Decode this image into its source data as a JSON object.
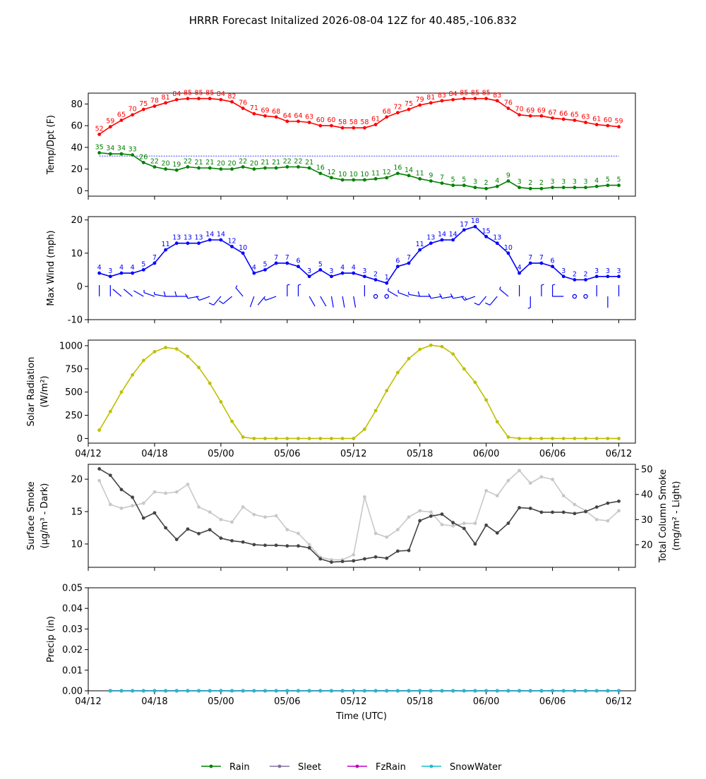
{
  "title": "HRRR Forecast Initalized 2026-08-04 12Z for 40.485,-106.832",
  "xlabel": "Time (UTC)",
  "x_start_hour": 13,
  "x_ticks": [
    {
      "label": "04/12",
      "hour": 12
    },
    {
      "label": "04/18",
      "hour": 18
    },
    {
      "label": "05/00",
      "hour": 24
    },
    {
      "label": "05/06",
      "hour": 30
    },
    {
      "label": "05/12",
      "hour": 36
    },
    {
      "label": "05/18",
      "hour": 42
    },
    {
      "label": "06/00",
      "hour": 48
    },
    {
      "label": "06/06",
      "hour": 54
    },
    {
      "label": "06/12",
      "hour": 60
    }
  ],
  "legend": [
    {
      "name": "Rain",
      "color": "#008000"
    },
    {
      "name": "Sleet",
      "color": "#8070a0"
    },
    {
      "name": "FzRain",
      "color": "#c000c0"
    },
    {
      "name": "SnowWater",
      "color": "#17becf"
    }
  ],
  "chart_data": [
    {
      "type": "line",
      "ylabel": "Temp/Dpt (F)",
      "ylim": [
        -5,
        90
      ],
      "yticks": [
        0,
        20,
        40,
        60,
        80
      ],
      "freezing_line": 32,
      "series": [
        {
          "color": "#ff0000",
          "values": [
            52,
            59,
            65,
            70,
            75,
            78,
            81,
            84,
            85,
            85,
            85,
            84,
            82,
            76,
            71,
            69,
            68,
            64,
            64,
            63,
            60,
            60,
            58,
            58,
            58,
            61,
            68,
            72,
            75,
            79,
            81,
            83,
            84,
            85,
            85,
            85,
            83,
            76,
            70,
            69,
            69,
            67,
            66,
            65,
            63,
            61,
            60,
            59
          ]
        },
        {
          "color": "#008000",
          "values": [
            35,
            34,
            34,
            33,
            26,
            22,
            20,
            19,
            22,
            21,
            21,
            20,
            20,
            22,
            20,
            21,
            21,
            22,
            22,
            21,
            16,
            12,
            10,
            10,
            10,
            11,
            12,
            16,
            14,
            11,
            9,
            7,
            5,
            5,
            3,
            2,
            4,
            9,
            3,
            2,
            2,
            3,
            3,
            3,
            3,
            4,
            5,
            5
          ]
        }
      ]
    },
    {
      "type": "line",
      "ylabel": "Max Wind (mph)",
      "ylim": [
        -10,
        21
      ],
      "yticks": [
        -10,
        0,
        10,
        20
      ],
      "series": [
        {
          "color": "#0000ff",
          "values": [
            4,
            3,
            4,
            4,
            5,
            7,
            11,
            13,
            13,
            13,
            14,
            14,
            12,
            10,
            4,
            5,
            7,
            7,
            6,
            3,
            5,
            3,
            4,
            4,
            3,
            2,
            1,
            6,
            7,
            11,
            13,
            14,
            14,
            17,
            18,
            15,
            13,
            10,
            4,
            7,
            7,
            6,
            3,
            2,
            2,
            3,
            3,
            3
          ]
        }
      ],
      "wind_barb_directions_deg": [
        0,
        0,
        310,
        310,
        300,
        290,
        280,
        270,
        270,
        260,
        250,
        220,
        230,
        320,
        200,
        220,
        250,
        0,
        0,
        150,
        150,
        170,
        170,
        170,
        0,
        0,
        300,
        300,
        290,
        280,
        270,
        260,
        260,
        260,
        250,
        220,
        220,
        310,
        0,
        180,
        0,
        0,
        270,
        0,
        0,
        0,
        180,
        0
      ]
    },
    {
      "type": "line",
      "ylabel": "Solar Radiation",
      "ylabel2": "(W/m²)",
      "ylim": [
        -50,
        1060
      ],
      "yticks": [
        0,
        250,
        500,
        750,
        1000
      ],
      "series": [
        {
          "color": "#bfbf00",
          "values": [
            90,
            290,
            500,
            685,
            840,
            935,
            980,
            965,
            885,
            765,
            595,
            395,
            185,
            15,
            0,
            0,
            0,
            0,
            0,
            0,
            0,
            0,
            0,
            0,
            100,
            300,
            515,
            710,
            860,
            960,
            1005,
            990,
            910,
            750,
            605,
            415,
            180,
            15,
            0,
            0,
            0,
            0,
            0,
            0,
            0,
            0,
            0,
            0
          ]
        }
      ]
    },
    {
      "type": "line",
      "ylabel": "Surface Smoke",
      "ylabel2": "(µg/m³ - Dark)",
      "ylabel_right": "Total Column Smoke",
      "ylabel_right2": "(mg/m² - Light)",
      "ylim": [
        6.4,
        22.3
      ],
      "yticks": [
        10,
        15,
        20
      ],
      "ylim_right": [
        11,
        52
      ],
      "yticks_right": [
        20,
        30,
        40,
        50
      ],
      "series": [
        {
          "color": "#444444",
          "axis": "left",
          "values": [
            21.6,
            20.6,
            18.4,
            17.2,
            14.0,
            14.8,
            12.5,
            10.7,
            12.3,
            11.6,
            12.2,
            10.9,
            10.5,
            10.3,
            9.9,
            9.8,
            9.8,
            9.7,
            9.7,
            9.4,
            7.7,
            7.2,
            7.3,
            7.4,
            7.7,
            8.0,
            7.8,
            8.9,
            9.0,
            13.6,
            14.3,
            14.6,
            13.3,
            12.4,
            10.0,
            12.9,
            11.7,
            13.2,
            15.6,
            15.5,
            14.9,
            14.9,
            14.9,
            14.7,
            15.0,
            15.7,
            16.3,
            16.6
          ]
        },
        {
          "color": "#c8c8c8",
          "axis": "right",
          "values": [
            45.5,
            36.0,
            34.5,
            35.5,
            36.5,
            41.0,
            40.5,
            41.0,
            44.0,
            35.0,
            33.0,
            30.0,
            29.0,
            35.0,
            32.0,
            31.0,
            31.5,
            26.0,
            24.5,
            20.0,
            15.0,
            14.0,
            14.0,
            16.0,
            39.0,
            24.5,
            23.0,
            26.0,
            31.0,
            33.5,
            33.0,
            28.0,
            27.5,
            28.5,
            28.5,
            41.5,
            39.5,
            45.5,
            49.5,
            44.5,
            47.0,
            46.0,
            39.5,
            36.0,
            33.5,
            30.0,
            29.5,
            33.5
          ]
        }
      ]
    },
    {
      "type": "line",
      "ylabel": "Precip (in)",
      "ylim": [
        0,
        0.05
      ],
      "yticks": [
        0,
        0.01,
        0.02,
        0.03,
        0.04,
        0.05
      ],
      "ytick_labels": [
        "0.00",
        "0.01",
        "0.02",
        "0.03",
        "0.04",
        "0.05"
      ],
      "series": [
        {
          "name": "Rain",
          "color": "#008000",
          "values": [
            0,
            0,
            0,
            0,
            0,
            0,
            0,
            0,
            0,
            0,
            0,
            0,
            0,
            0,
            0,
            0,
            0,
            0,
            0,
            0,
            0,
            0,
            0,
            0,
            0,
            0,
            0,
            0,
            0,
            0,
            0,
            0,
            0,
            0,
            0,
            0,
            0,
            0,
            0,
            0,
            0,
            0,
            0,
            0,
            0,
            0,
            0
          ]
        },
        {
          "name": "Sleet",
          "color": "#8070a0",
          "values": [
            0,
            0,
            0,
            0,
            0,
            0,
            0,
            0,
            0,
            0,
            0,
            0,
            0,
            0,
            0,
            0,
            0,
            0,
            0,
            0,
            0,
            0,
            0,
            0,
            0,
            0,
            0,
            0,
            0,
            0,
            0,
            0,
            0,
            0,
            0,
            0,
            0,
            0,
            0,
            0,
            0,
            0,
            0,
            0,
            0,
            0,
            0
          ]
        },
        {
          "name": "FzRain",
          "color": "#c000c0",
          "values": [
            0,
            0,
            0,
            0,
            0,
            0,
            0,
            0,
            0,
            0,
            0,
            0,
            0,
            0,
            0,
            0,
            0,
            0,
            0,
            0,
            0,
            0,
            0,
            0,
            0,
            0,
            0,
            0,
            0,
            0,
            0,
            0,
            0,
            0,
            0,
            0,
            0,
            0,
            0,
            0,
            0,
            0,
            0,
            0,
            0,
            0,
            0
          ]
        },
        {
          "name": "SnowWater",
          "color": "#17becf",
          "values": [
            0,
            0,
            0,
            0,
            0,
            0,
            0,
            0,
            0,
            0,
            0,
            0,
            0,
            0,
            0,
            0,
            0,
            0,
            0,
            0,
            0,
            0,
            0,
            0,
            0,
            0,
            0,
            0,
            0,
            0,
            0,
            0,
            0,
            0,
            0,
            0,
            0,
            0,
            0,
            0,
            0,
            0,
            0,
            0,
            0,
            0,
            0
          ]
        }
      ]
    }
  ]
}
